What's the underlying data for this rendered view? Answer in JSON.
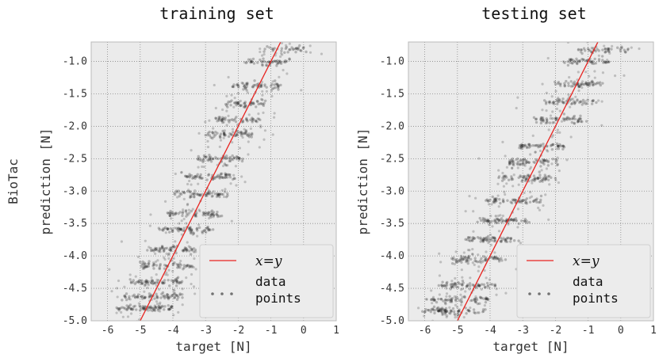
{
  "figure": {
    "row_label": "BioTac"
  },
  "chart_data": [
    {
      "type": "scatter",
      "title": "training set",
      "xlabel": "target [N]",
      "ylabel": "prediction [N]",
      "xlim": [
        -6.5,
        1.0
      ],
      "ylim": [
        -5.0,
        -0.7
      ],
      "xticks": [
        -6,
        -5,
        -4,
        -3,
        -2,
        -1,
        0,
        1
      ],
      "yticks": [
        -5.0,
        -4.5,
        -4.0,
        -3.5,
        -3.0,
        -2.5,
        -2.0,
        -1.5,
        -1.0
      ],
      "grid": true,
      "legend_position": "lower-right",
      "reference_line": {
        "label": "x=y",
        "slope": 1,
        "intercept": 0,
        "color": "#e8231f"
      },
      "series": [
        {
          "name": "data points",
          "color": "#222222",
          "spread": 0.55,
          "bands": [
            {
              "y": -4.8,
              "x_center": -4.9,
              "half_width": 0.9,
              "n": 70
            },
            {
              "y": -4.62,
              "x_center": -4.6,
              "half_width": 0.9,
              "n": 60
            },
            {
              "y": -4.4,
              "x_center": -4.5,
              "half_width": 0.8,
              "n": 60
            },
            {
              "y": -4.15,
              "x_center": -4.2,
              "half_width": 0.8,
              "n": 55
            },
            {
              "y": -3.9,
              "x_center": -4.0,
              "half_width": 0.7,
              "n": 55
            },
            {
              "y": -3.6,
              "x_center": -3.6,
              "half_width": 0.75,
              "n": 55
            },
            {
              "y": -3.35,
              "x_center": -3.35,
              "half_width": 0.8,
              "n": 55
            },
            {
              "y": -3.05,
              "x_center": -3.1,
              "half_width": 0.8,
              "n": 55
            },
            {
              "y": -2.78,
              "x_center": -2.85,
              "half_width": 0.75,
              "n": 55
            },
            {
              "y": -2.5,
              "x_center": -2.55,
              "half_width": 0.7,
              "n": 50
            },
            {
              "y": -2.12,
              "x_center": -2.25,
              "half_width": 0.7,
              "n": 55
            },
            {
              "y": -1.9,
              "x_center": -2.05,
              "half_width": 0.65,
              "n": 45
            },
            {
              "y": -1.65,
              "x_center": -1.8,
              "half_width": 0.7,
              "n": 45
            },
            {
              "y": -1.38,
              "x_center": -1.45,
              "half_width": 0.75,
              "n": 50
            },
            {
              "y": -1.0,
              "x_center": -1.05,
              "half_width": 0.65,
              "n": 45
            },
            {
              "y": -0.82,
              "x_center": -0.6,
              "half_width": 0.6,
              "n": 30
            }
          ]
        }
      ]
    },
    {
      "type": "scatter",
      "title": "testing set",
      "xlabel": "target [N]",
      "ylabel": "prediction [N]",
      "xlim": [
        -6.5,
        1.0
      ],
      "ylim": [
        -5.0,
        -0.7
      ],
      "xticks": [
        -6,
        -5,
        -4,
        -3,
        -2,
        -1,
        0,
        1
      ],
      "yticks": [
        -5.0,
        -4.5,
        -4.0,
        -3.5,
        -3.0,
        -2.5,
        -2.0,
        -1.5,
        -1.0
      ],
      "grid": true,
      "legend_position": "lower-right",
      "reference_line": {
        "label": "x=y",
        "slope": 1,
        "intercept": 0,
        "color": "#e8231f"
      },
      "series": [
        {
          "name": "data points",
          "color": "#222222",
          "spread": 0.6,
          "bands": [
            {
              "y": -4.85,
              "x_center": -5.1,
              "half_width": 0.95,
              "n": 70
            },
            {
              "y": -4.68,
              "x_center": -4.9,
              "half_width": 0.9,
              "n": 55
            },
            {
              "y": -4.45,
              "x_center": -4.7,
              "half_width": 0.9,
              "n": 60
            },
            {
              "y": -4.05,
              "x_center": -4.4,
              "half_width": 0.85,
              "n": 60
            },
            {
              "y": -3.75,
              "x_center": -4.0,
              "half_width": 0.8,
              "n": 55
            },
            {
              "y": -3.45,
              "x_center": -3.6,
              "half_width": 0.8,
              "n": 55
            },
            {
              "y": -3.15,
              "x_center": -3.3,
              "half_width": 0.85,
              "n": 55
            },
            {
              "y": -2.8,
              "x_center": -2.9,
              "half_width": 0.8,
              "n": 60
            },
            {
              "y": -2.55,
              "x_center": -2.65,
              "half_width": 0.75,
              "n": 55
            },
            {
              "y": -2.3,
              "x_center": -2.4,
              "half_width": 0.7,
              "n": 50
            },
            {
              "y": -1.9,
              "x_center": -1.85,
              "half_width": 0.8,
              "n": 55
            },
            {
              "y": -1.62,
              "x_center": -1.6,
              "half_width": 0.75,
              "n": 45
            },
            {
              "y": -1.35,
              "x_center": -1.3,
              "half_width": 0.75,
              "n": 50
            },
            {
              "y": -1.0,
              "x_center": -0.95,
              "half_width": 0.7,
              "n": 45
            },
            {
              "y": -0.82,
              "x_center": -0.5,
              "half_width": 0.75,
              "n": 40
            }
          ]
        }
      ]
    }
  ]
}
